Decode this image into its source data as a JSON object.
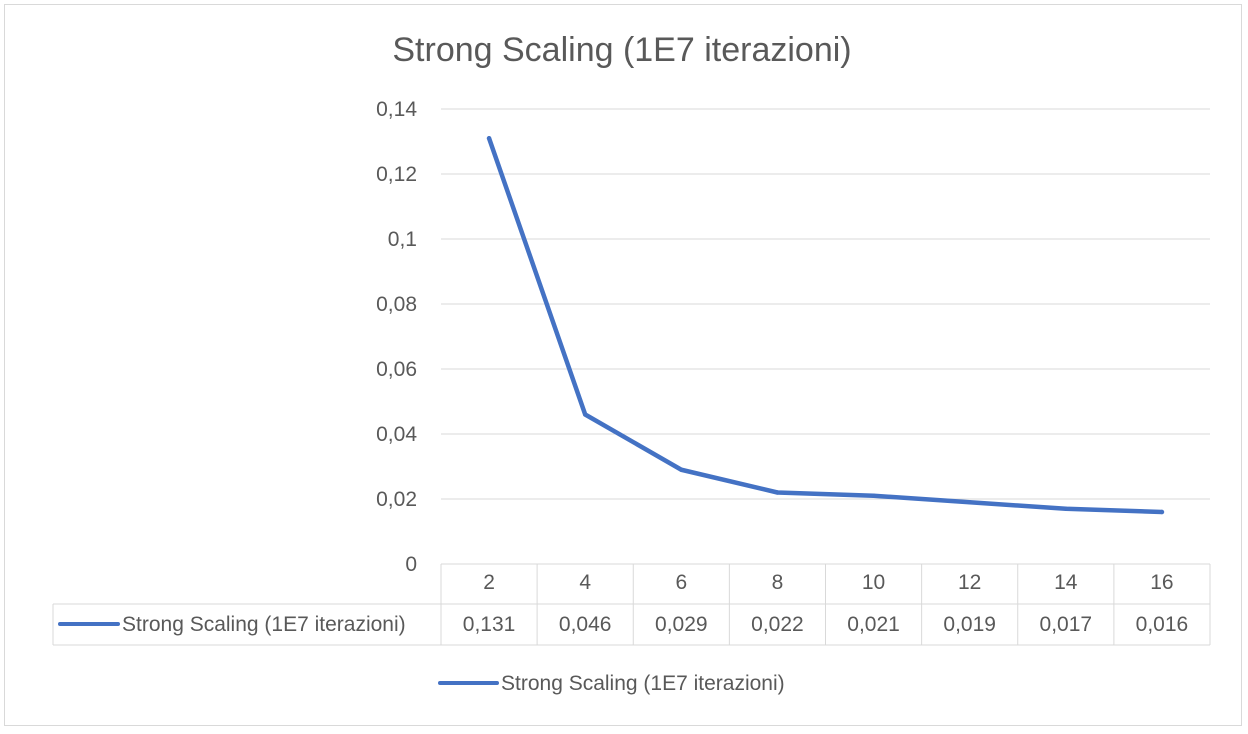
{
  "chart_data": {
    "type": "line",
    "title": "Strong Scaling (1E7 iterazioni)",
    "categories": [
      "2",
      "4",
      "6",
      "8",
      "10",
      "12",
      "14",
      "16"
    ],
    "series": [
      {
        "name": "Strong Scaling (1E7 iterazioni)",
        "values": [
          0.131,
          0.046,
          0.029,
          0.022,
          0.021,
          0.019,
          0.017,
          0.016
        ],
        "value_labels": [
          "0,131",
          "0,046",
          "0,029",
          "0,022",
          "0,021",
          "0,019",
          "0,017",
          "0,016"
        ],
        "color": "#4472C4"
      }
    ],
    "ylim": [
      0,
      0.14
    ],
    "y_ticks": [
      0,
      0.02,
      0.04,
      0.06,
      0.08,
      0.1,
      0.12,
      0.14
    ],
    "y_tick_labels": [
      "0",
      "0,02",
      "0,04",
      "0,06",
      "0,08",
      "0,1",
      "0,12",
      "0,14"
    ],
    "grid": true,
    "data_table": true,
    "legend_position": "bottom"
  },
  "colors": {
    "series": "#4472C4",
    "grid": "#d9d9d9",
    "text": "#595959",
    "frame": "#d9d9d9"
  }
}
